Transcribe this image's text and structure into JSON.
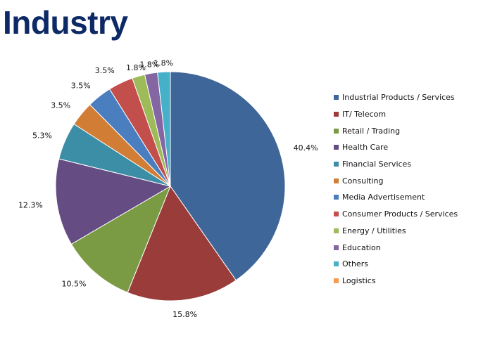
{
  "title": "Industry",
  "chart_data": {
    "type": "pie",
    "title": "Industry",
    "legend_position": "right",
    "slices": [
      {
        "label": "Industrial Products / Services",
        "value": 40.4,
        "value_label": "40.4%",
        "color": "#3f6698"
      },
      {
        "label": "IT/ Telecom",
        "value": 15.8,
        "value_label": "15.8%",
        "color": "#9a3c3a"
      },
      {
        "label": "Retail / Trading",
        "value": 10.5,
        "value_label": "10.5%",
        "color": "#7b9a44"
      },
      {
        "label": "Health Care",
        "value": 12.3,
        "value_label": "12.3%",
        "color": "#654d84"
      },
      {
        "label": "Financial Services",
        "value": 5.3,
        "value_label": "5.3%",
        "color": "#3c8ea6"
      },
      {
        "label": "Consulting",
        "value": 3.5,
        "value_label": "3.5%",
        "color": "#d27d35"
      },
      {
        "label": "Media Advertisement",
        "value": 3.5,
        "value_label": "3.5%",
        "color": "#4a7ebf"
      },
      {
        "label": "Consumer Products / Services",
        "value": 3.5,
        "value_label": "3.5%",
        "color": "#c34f4d"
      },
      {
        "label": "Energy / Utilities",
        "value": 1.8,
        "value_label": "1.8%",
        "color": "#9dbb58"
      },
      {
        "label": "Education",
        "value": 1.8,
        "value_label": "1.8%",
        "color": "#8466a2"
      },
      {
        "label": "Others",
        "value": 1.8,
        "value_label": "1.8%",
        "color": "#45b0c8"
      },
      {
        "label": "Logistics",
        "value": 0,
        "value_label": "",
        "color": "#f59a4f"
      }
    ]
  }
}
